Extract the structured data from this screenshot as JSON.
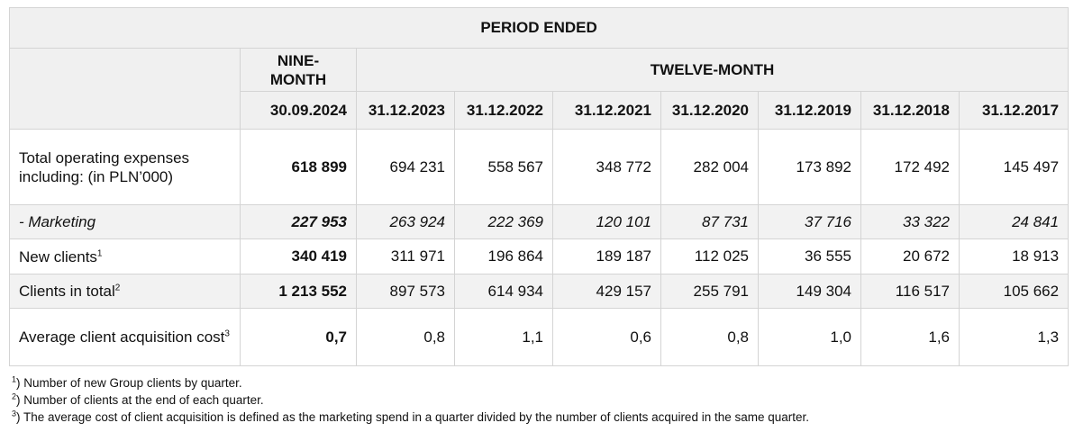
{
  "header": {
    "period_ended": "PERIOD ENDED",
    "nine_month": "NINE-MONTH",
    "twelve_month": "TWELVE-MONTH",
    "dates": [
      "30.09.2024",
      "31.12.2023",
      "31.12.2022",
      "31.12.2021",
      "31.12.2020",
      "31.12.2019",
      "31.12.2018",
      "31.12.2017"
    ]
  },
  "rows": [
    {
      "label": "Total operating expenses including: (in PLN’000)",
      "values": [
        "618 899",
        "694 231",
        "558 567",
        "348 772",
        "282 004",
        "173 892",
        "172 492",
        "145 497"
      ]
    },
    {
      "label": "- Marketing",
      "values": [
        "227 953",
        "263 924",
        "222 369",
        "120 101",
        "87 731",
        "37 716",
        "33 322",
        "24 841"
      ]
    },
    {
      "label": "New clients",
      "sup": "1",
      "values": [
        "340 419",
        "311 971",
        "196 864",
        "189 187",
        "112 025",
        "36 555",
        "20 672",
        "18 913"
      ]
    },
    {
      "label": "Clients in total",
      "sup": "2",
      "values": [
        "1 213 552",
        "897 573",
        "614 934",
        "429 157",
        "255 791",
        "149 304",
        "116 517",
        "105 662"
      ]
    },
    {
      "label": "Average client acquisition cost",
      "sup": "3",
      "values": [
        "0,7",
        "0,8",
        "1,1",
        "0,6",
        "0,8",
        "1,0",
        "1,6",
        "1,3"
      ]
    }
  ],
  "notes": [
    {
      "mark": "1",
      "text": ") Number of new Group clients by quarter."
    },
    {
      "mark": "2",
      "text": ") Number of clients at the end of each quarter."
    },
    {
      "mark": "3",
      "text": ") The average cost of client acquisition is defined as the marketing spend in a quarter divided by the number of clients acquired in the same quarter."
    }
  ]
}
